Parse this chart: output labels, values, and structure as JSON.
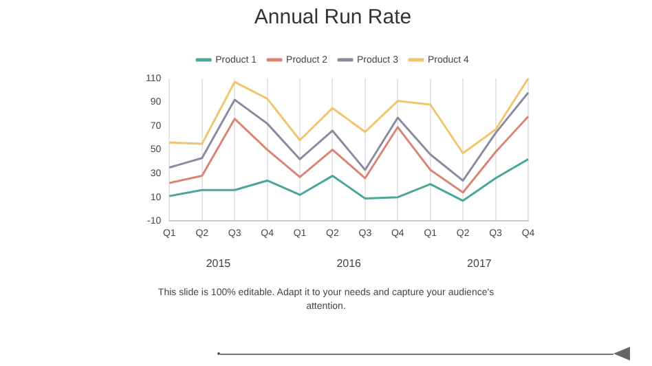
{
  "chart_data": {
    "type": "line",
    "title": "Annual Run Rate",
    "categories": [
      "Q1",
      "Q2",
      "Q3",
      "Q4",
      "Q1",
      "Q2",
      "Q3",
      "Q4",
      "Q1",
      "Q2",
      "Q3",
      "Q4"
    ],
    "series": [
      {
        "name": "Product 1",
        "color": "#4aa59a",
        "values": [
          11,
          16,
          16,
          24,
          12,
          28,
          9,
          10,
          21,
          7,
          26,
          42
        ]
      },
      {
        "name": "Product 2",
        "color": "#d98475",
        "values": [
          22,
          28,
          76,
          50,
          27,
          50,
          26,
          69,
          33,
          14,
          48,
          78
        ]
      },
      {
        "name": "Product 3",
        "color": "#8a8aa0",
        "values": [
          35,
          43,
          92,
          72,
          42,
          66,
          33,
          77,
          46,
          24,
          64,
          98
        ]
      },
      {
        "name": "Product 4",
        "color": "#f0c56e",
        "values": [
          56,
          55,
          107,
          93,
          58,
          85,
          65,
          91,
          88,
          47,
          67,
          110
        ]
      }
    ],
    "ylim": [
      -10,
      110
    ],
    "yticks": [
      -10,
      10,
      30,
      50,
      70,
      90,
      110
    ],
    "grid": "x",
    "legend": "top",
    "marker": "none",
    "line_style": "solid",
    "annotations": [
      "2015",
      "2016",
      "2017",
      "This slide is 100% editable. Adapt it to your needs and capture your audience's attention."
    ]
  }
}
